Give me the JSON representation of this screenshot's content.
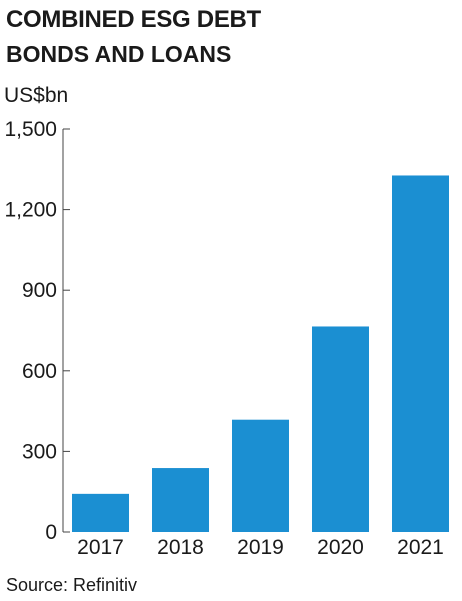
{
  "header": {
    "title": "COMBINED ESG DEBT",
    "subtitle": "BONDS AND LOANS",
    "unit": "US$bn"
  },
  "footer": {
    "source": "Source: Refinitiv"
  },
  "colors": {
    "bar": "#1b8fd2",
    "axis": "#444444"
  },
  "chart_data": {
    "type": "bar",
    "title": "COMBINED ESG DEBT",
    "subtitle": "BONDS AND LOANS",
    "ylabel": "US$bn",
    "xlabel": "",
    "categories": [
      "2017",
      "2018",
      "2019",
      "2020",
      "2021"
    ],
    "values": [
      142,
      238,
      418,
      765,
      1327
    ],
    "ylim": [
      0,
      1500
    ],
    "yticks": [
      0,
      300,
      600,
      900,
      1200,
      1500
    ],
    "ytick_labels": [
      "0",
      "300",
      "600",
      "900",
      "1,200",
      "1,500"
    ],
    "grid": false,
    "legend": "none"
  }
}
